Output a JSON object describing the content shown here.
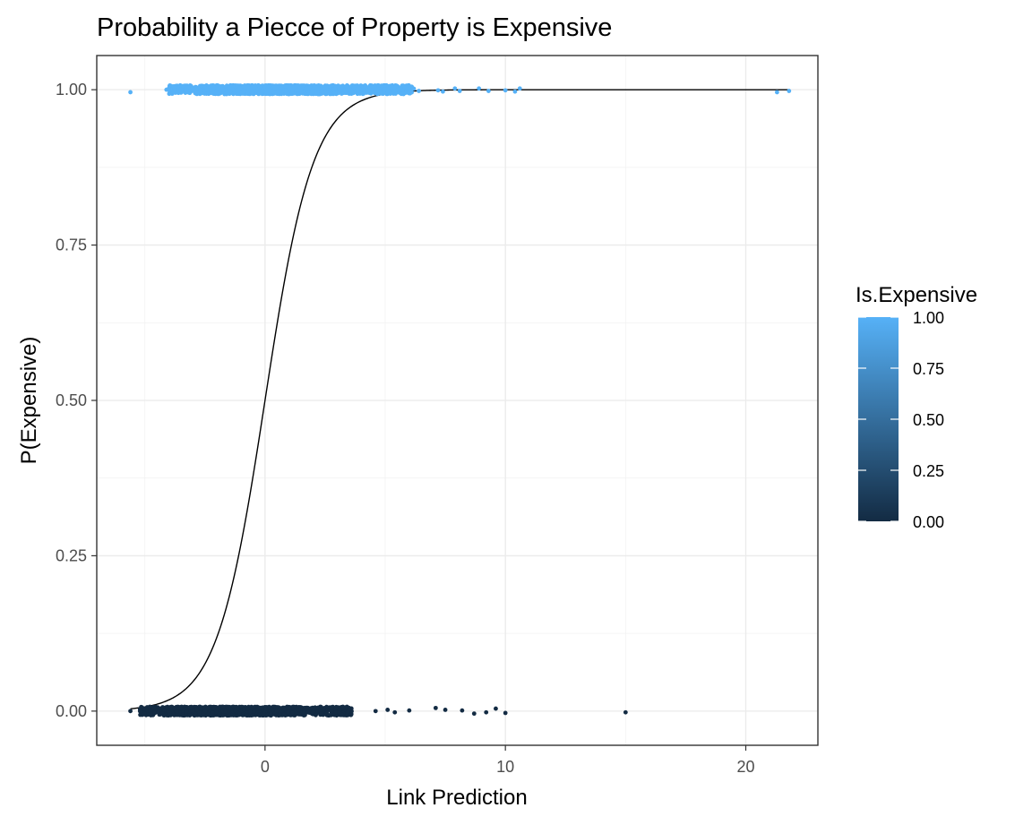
{
  "chart_data": {
    "type": "scatter",
    "title": "Probability a Piecce of Property is Expensive",
    "xlabel": "Link Prediction",
    "ylabel": "P(Expensive)",
    "xlim": [
      -7,
      23
    ],
    "ylim": [
      -0.055,
      1.055
    ],
    "x_ticks": [
      0,
      10,
      20
    ],
    "x_tick_labels": [
      "0",
      "10",
      "20"
    ],
    "y_ticks": [
      0,
      0.25,
      0.5,
      0.75,
      1.0
    ],
    "y_tick_labels": [
      "0.00",
      "0.25",
      "0.50",
      "0.75",
      "1.00"
    ],
    "grid": true,
    "fit_curve": {
      "type": "logistic",
      "description_values": {
        "x_min": -5.6,
        "x_max": 21.8
      },
      "x": [
        -5.6,
        -5,
        -4,
        -3,
        -2,
        -1,
        0,
        1,
        2,
        3,
        4,
        5,
        6,
        8,
        10,
        15,
        21.8
      ],
      "y": [
        0.004,
        0.007,
        0.018,
        0.047,
        0.12,
        0.27,
        0.5,
        0.73,
        0.88,
        0.953,
        0.982,
        0.993,
        0.9975,
        0.9997,
        1.0,
        1.0,
        1.0
      ]
    },
    "series": [
      {
        "name": "1",
        "value": 1.0,
        "color": "#56B1F7",
        "dense_range": [
          -4.0,
          6.2
        ],
        "points": [
          [
            -5.6,
            0.996
          ],
          [
            -4.1,
            1.0
          ],
          [
            -4.0,
            1.002
          ],
          [
            6.4,
            0.998
          ],
          [
            7.2,
            0.999
          ],
          [
            7.4,
            0.997
          ],
          [
            7.9,
            1.002
          ],
          [
            8.1,
            0.998
          ],
          [
            8.9,
            1.002
          ],
          [
            9.3,
            0.998
          ],
          [
            10.0,
            0.999
          ],
          [
            10.4,
            0.997
          ],
          [
            10.6,
            1.002
          ],
          [
            21.3,
            0.996
          ],
          [
            21.8,
            0.998
          ]
        ]
      },
      {
        "name": "0",
        "value": 0.0,
        "color": "#132B43",
        "dense_range": [
          -5.2,
          3.6
        ],
        "points": [
          [
            -5.6,
            0.0
          ],
          [
            4.6,
            0.0
          ],
          [
            5.1,
            0.002
          ],
          [
            5.4,
            -0.002
          ],
          [
            6.0,
            0.001
          ],
          [
            7.1,
            0.005
          ],
          [
            7.5,
            0.002
          ],
          [
            8.2,
            0.001
          ],
          [
            8.7,
            -0.004
          ],
          [
            9.2,
            -0.002
          ],
          [
            9.6,
            0.004
          ],
          [
            10.0,
            -0.003
          ],
          [
            15.0,
            -0.002
          ]
        ]
      }
    ],
    "legend": {
      "title": "Is.Expensive",
      "placement": "right",
      "type": "colorbar",
      "low_color": "#132B43",
      "high_color": "#56B1F7",
      "ticks": [
        0,
        0.25,
        0.5,
        0.75,
        1.0
      ],
      "tick_labels": [
        "0.00",
        "0.25",
        "0.50",
        "0.75",
        "1.00"
      ]
    }
  }
}
